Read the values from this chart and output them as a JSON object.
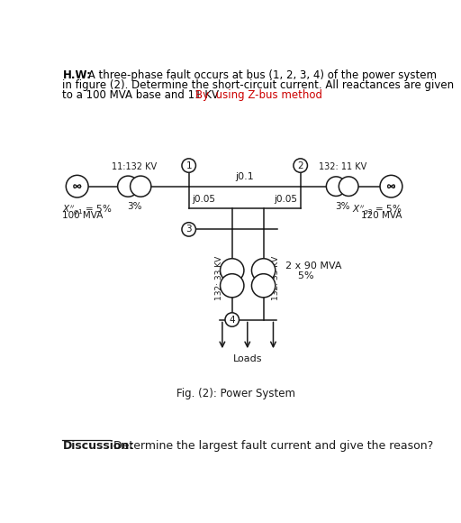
{
  "title_hw": "H.W:",
  "title_body": " A three-phase fault occurs at bus (1, 2, 3, 4) of the power system\nin figure (2). Determine the short-circuit current. All reactances are given\nto a 100 MVA base and 11 KV.",
  "title_red": "By  using Z-bus method",
  "transformer1_ratio": "11:132 KV",
  "transformer1_pct": "3%",
  "transformer2_ratio": "132: 11 KV",
  "transformer2_pct": "3%",
  "line_reactance": "j0.1",
  "line_r1": "j0.05",
  "line_r2": "j0.05",
  "transformer3_ratio": "132: 33 KV",
  "transformer3_info": "2 x 90 MVA\n    5%",
  "loads_label": "Loads",
  "fig_caption": "Fig. (2): Power System",
  "discussion_bold": "Discussion:",
  "discussion_text": " Determine the largest fault current and give the reason?",
  "bg_color": "#ffffff",
  "line_color": "#1a1a1a",
  "red_color": "#cc0000",
  "gen1_x11": "$X''_{g1}$ = 5%",
  "gen1_mva": "100 MVA",
  "gen2_x11": "$X''_{g2}$ = 5%",
  "gen2_mva": "120 MVA"
}
